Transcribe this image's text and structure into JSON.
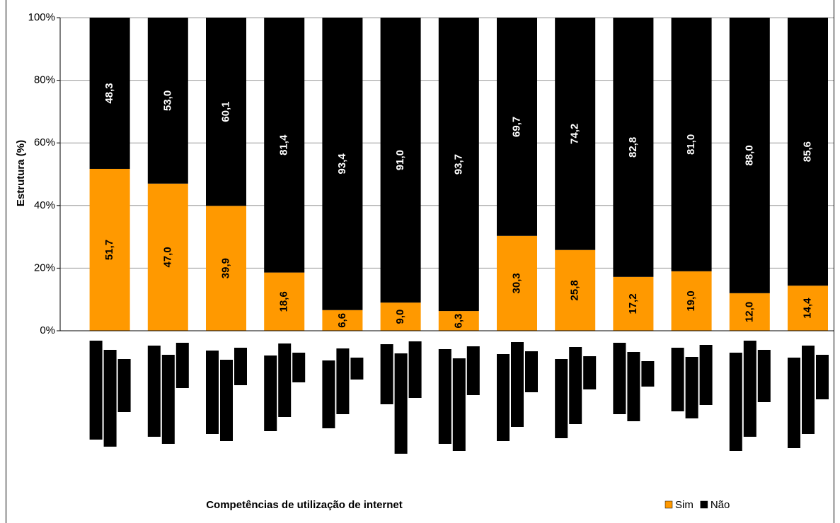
{
  "chart_data": {
    "type": "stacked_bar",
    "y_axis_label": "Estrutura (%)",
    "x_axis_label": "Competências de utilização de internet",
    "categories": [
      null,
      null,
      null,
      null,
      null,
      null,
      null,
      null,
      null,
      null,
      null,
      null,
      null
    ],
    "series": [
      {
        "name": "Sim",
        "color": "#ff9900",
        "values": [
          51.7,
          47.0,
          39.9,
          18.6,
          6.6,
          9.0,
          6.3,
          30.3,
          25.8,
          17.2,
          19.0,
          12.0,
          14.4
        ],
        "value_labels": [
          "51,7",
          "47,0",
          "39,9",
          "18,6",
          "6,6",
          "9,0",
          "6,3",
          "30,3",
          "25,8",
          "17,2",
          "19,0",
          "12,0",
          "14,4"
        ]
      },
      {
        "name": "Não",
        "color": "#000000",
        "values": [
          48.3,
          53.0,
          60.1,
          81.4,
          93.4,
          91.0,
          93.7,
          69.7,
          74.2,
          82.8,
          81.0,
          88.0,
          85.6
        ],
        "value_labels": [
          "48,3",
          "53,0",
          "60,1",
          "81,4",
          "93,4",
          "91,0",
          "93,7",
          "69,7",
          "74,2",
          "82,8",
          "81,0",
          "88,0",
          "85,6"
        ]
      }
    ],
    "ylim": [
      0,
      100
    ],
    "yticks": [
      {
        "value": 0,
        "label": "0%"
      },
      {
        "value": 20,
        "label": "20%"
      },
      {
        "value": 40,
        "label": "40%"
      },
      {
        "value": 60,
        "label": "60%"
      },
      {
        "value": 80,
        "label": "80%"
      },
      {
        "value": 100,
        "label": "100%"
      }
    ],
    "grid": true,
    "legend": "bottom-right"
  }
}
